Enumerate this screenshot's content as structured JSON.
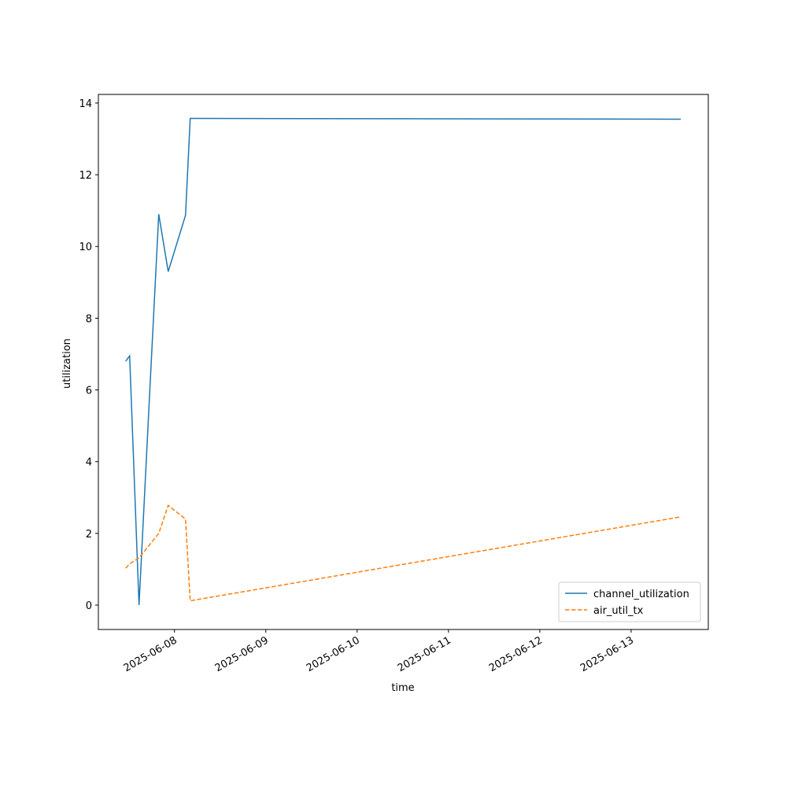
{
  "chart_data": {
    "type": "line",
    "x": [
      "2025-06-07T11:10",
      "2025-06-07T12:13",
      "2025-06-07T14:41",
      "2025-06-07T17:22",
      "2025-06-07T19:52",
      "2025-06-07T22:21",
      "2025-06-08T02:54",
      "2025-06-08T04:08",
      "2025-06-13T13:02"
    ],
    "series": [
      {
        "name": "channel_utilization",
        "color": "#1f77b4",
        "dash": "solid",
        "values": [
          6.8,
          6.95,
          0,
          5.67,
          10.9,
          9.3,
          10.87,
          13.57,
          13.55
        ]
      },
      {
        "name": "air_util_tx",
        "color": "#ff7f0e",
        "dash": "dashed",
        "values": [
          1.03,
          1.15,
          1.32,
          1.67,
          2.0,
          2.78,
          2.4,
          0.12,
          2.46
        ]
      }
    ],
    "xlabel": "time",
    "ylabel": "utilization",
    "xlim": [
      "2025-06-07T04:00",
      "2025-06-13T20:17"
    ],
    "xticks": [
      "2025-06-08",
      "2025-06-09",
      "2025-06-10",
      "2025-06-11",
      "2025-06-12",
      "2025-06-13"
    ],
    "ylim": [
      -0.68,
      14.24
    ],
    "yticks": [
      0,
      2,
      4,
      6,
      8,
      10,
      12,
      14
    ],
    "grid": false,
    "legend": "lower right"
  }
}
